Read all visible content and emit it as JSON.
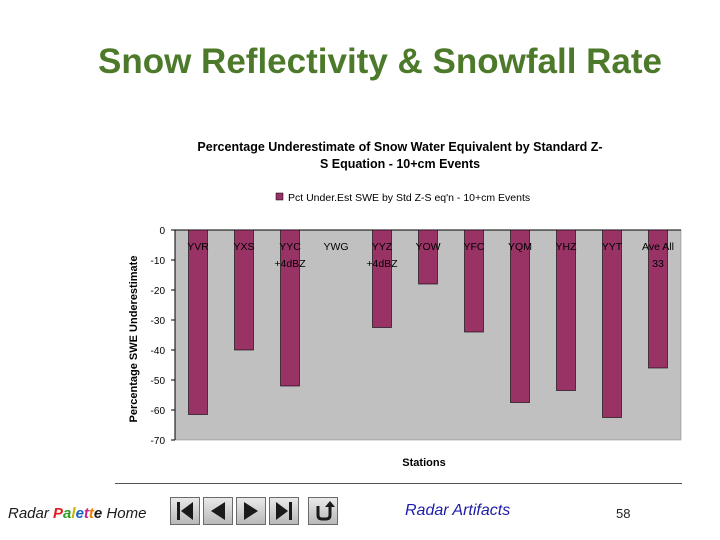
{
  "slide": {
    "title": "Snow Reflectivity & Snowfall Rate",
    "footer": {
      "home_prefix": "Radar ",
      "home_palette": [
        "P",
        "a",
        "l",
        "e",
        "t",
        "t",
        "e"
      ],
      "home_suffix": " Home",
      "link_label": "Radar Artifacts",
      "page_number": "58",
      "nav_icons": [
        "first-icon",
        "previous-icon",
        "next-icon",
        "last-icon",
        "return-icon"
      ]
    },
    "colors": {
      "title": "#4c7a2a",
      "palette_letters": [
        "#e02020",
        "#2aa02a",
        "#c8b400",
        "#1a5fc0",
        "#d02090",
        "#f08000",
        "#1a1a1a"
      ],
      "bar": "#993366",
      "plot_area": "#c0c0c0",
      "link": "#1c1ca8"
    }
  },
  "chart_data": {
    "type": "bar",
    "title": "Percentage Underestimate of Snow Water Equivalent by Standard Z-S Equation - 10+cm Events",
    "title_lines": [
      "Percentage Underestimate of Snow Water Equivalent by Standard Z-",
      "S Equation - 10+cm Events"
    ],
    "legend": "Pct Under.Est SWE by Std Z-S eq'n - 10+cm Events",
    "legend_position": "top",
    "xlabel": "Stations",
    "ylabel": "Percentage SWE Underestimate",
    "ylim": [
      -70,
      0
    ],
    "yticks": [
      0,
      -10,
      -20,
      -30,
      -40,
      -50,
      -60,
      -70
    ],
    "grid": false,
    "categories": [
      "YVR",
      "YXS",
      "YYC",
      "YWG",
      "YYZ",
      "YOW",
      "YFC",
      "YQM",
      "YHZ",
      "YYT",
      "Ave All"
    ],
    "category_sublabels": [
      "",
      "",
      "+4dBZ",
      "",
      "+4dBZ",
      "",
      "",
      "",
      "",
      "",
      "33"
    ],
    "values": [
      -61.5,
      -40,
      -52,
      0,
      -32.5,
      -18,
      -34,
      -57.5,
      -53.5,
      -62.5,
      -46
    ]
  }
}
